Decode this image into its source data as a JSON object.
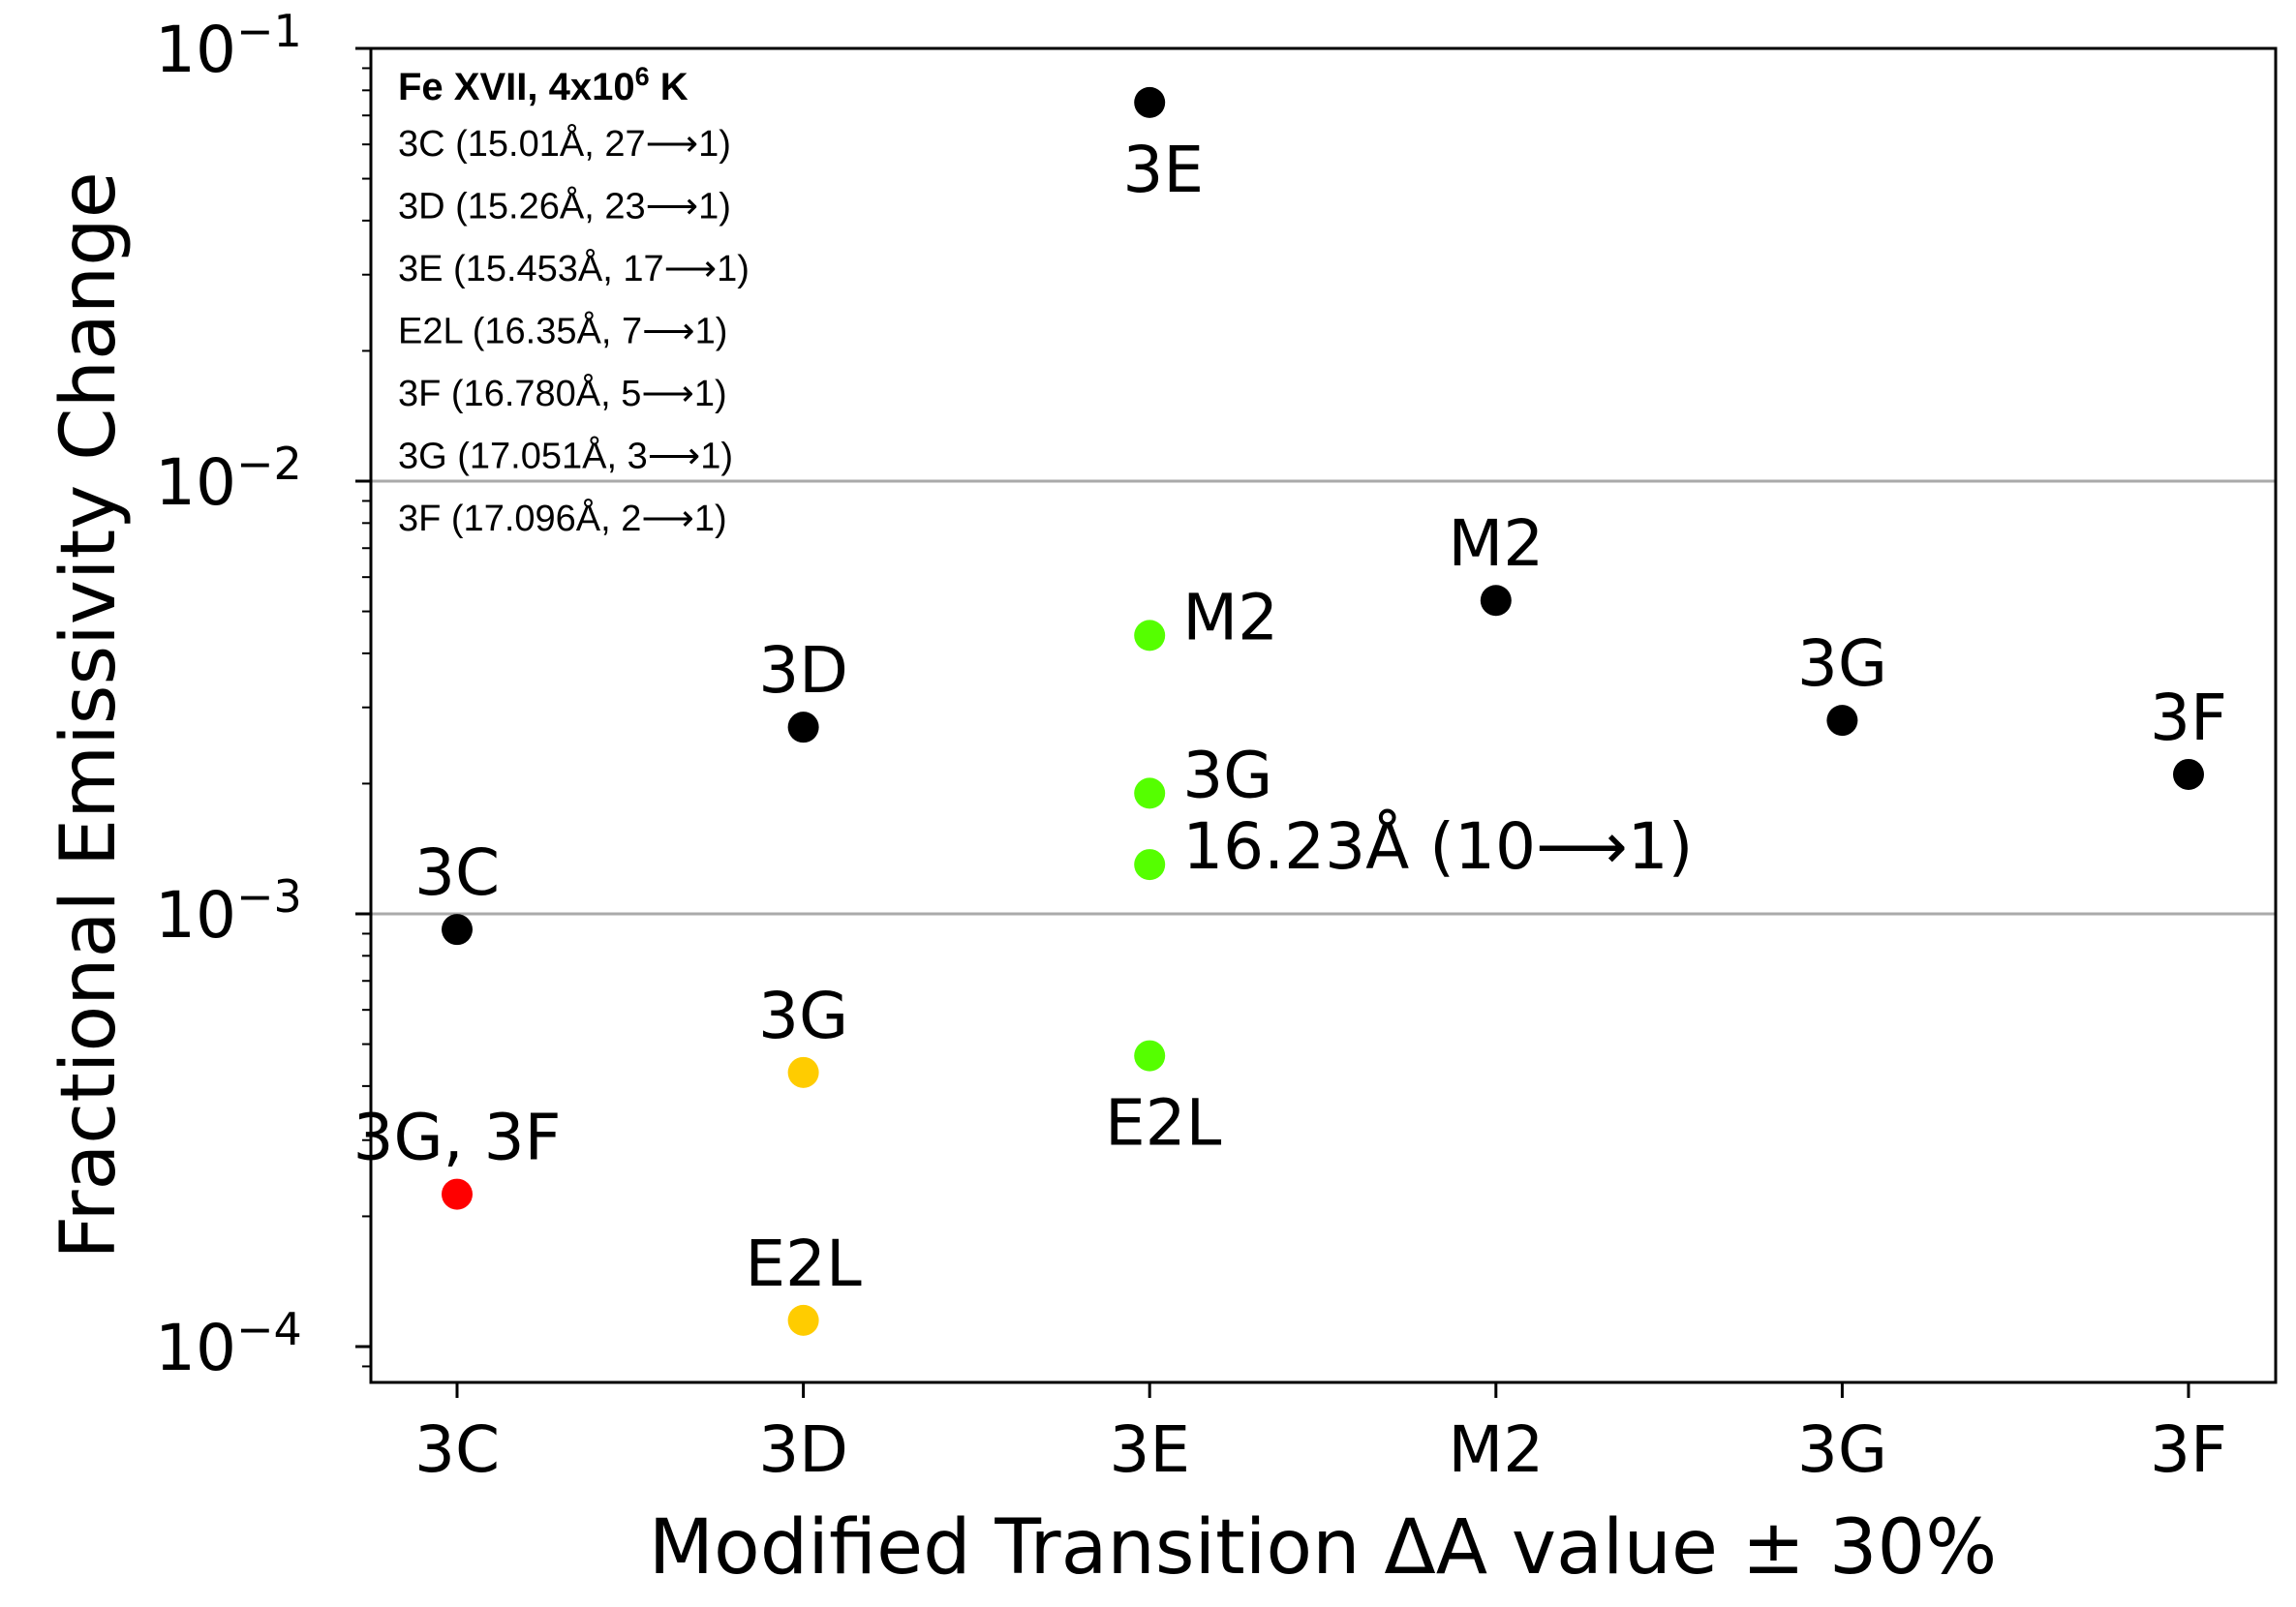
{
  "chart_data": {
    "type": "scatter",
    "xlabel": "Modified Transition ΔA value ± 30%",
    "ylabel": "Fractional Emissivity Change",
    "yscale": "log",
    "ylim": [
      7.5e-05,
      0.1
    ],
    "grid_lines_y": [
      0.01,
      0.001
    ],
    "categories": [
      "3C",
      "3D",
      "3E",
      "M2",
      "3G",
      "3F"
    ],
    "y_ticks": [
      {
        "value": 0.1,
        "base": "10",
        "exp": "−1"
      },
      {
        "value": 0.01,
        "base": "10",
        "exp": "−2"
      },
      {
        "value": 0.001,
        "base": "10",
        "exp": "−3"
      },
      {
        "value": 0.0001,
        "base": "10",
        "exp": "−4"
      }
    ],
    "legend": {
      "position": "top-left",
      "title_main": "Fe XVII, 4x10",
      "title_sup": "6",
      "title_tail": " K",
      "entries": [
        "3C (15.01Å, 27⟶1)",
        "3D (15.26Å, 23⟶1)",
        "3E (15.453Å, 17⟶1)",
        "E2L (16.35Å, 7⟶1)",
        "3F (16.780Å, 5⟶1)",
        "3G (17.051Å, 3⟶1)",
        "3F (17.096Å, 2⟶1)"
      ]
    },
    "points": [
      {
        "x": "3C",
        "y": 0.00092,
        "color": "#000000",
        "label": "3C",
        "label_pos": "above"
      },
      {
        "x": "3C",
        "y": 0.000225,
        "color": "#ff0000",
        "label": "3G, 3F",
        "label_pos": "above"
      },
      {
        "x": "3D",
        "y": 0.0027,
        "color": "#000000",
        "label": "3D",
        "label_pos": "above"
      },
      {
        "x": "3D",
        "y": 0.00043,
        "color": "#ffcc00",
        "label": "3G",
        "label_pos": "above"
      },
      {
        "x": "3D",
        "y": 0.000115,
        "color": "#ffcc00",
        "label": "E2L",
        "label_pos": "above"
      },
      {
        "x": "3E",
        "y": 0.075,
        "color": "#000000",
        "label": "3E",
        "label_pos": "below"
      },
      {
        "x": "3E",
        "y": 0.0044,
        "color": "#55ff00",
        "label": "M2",
        "label_pos": "right"
      },
      {
        "x": "3E",
        "y": 0.0019,
        "color": "#55ff00",
        "label": "3G",
        "label_pos": "right"
      },
      {
        "x": "3E",
        "y": 0.0013,
        "color": "#55ff00",
        "label": "16.23Å (10⟶1)",
        "label_pos": "right"
      },
      {
        "x": "3E",
        "y": 0.00047,
        "color": "#55ff00",
        "label": "E2L",
        "label_pos": "below"
      },
      {
        "x": "M2",
        "y": 0.0053,
        "color": "#000000",
        "label": "M2",
        "label_pos": "above"
      },
      {
        "x": "3G",
        "y": 0.0028,
        "color": "#000000",
        "label": "3G",
        "label_pos": "above"
      },
      {
        "x": "3F",
        "y": 0.0021,
        "color": "#000000",
        "label": "3F",
        "label_pos": "above"
      }
    ]
  }
}
